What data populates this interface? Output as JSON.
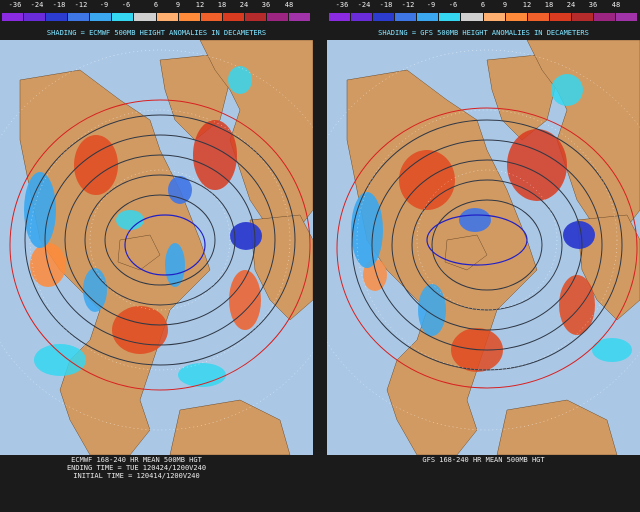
{
  "colorbar": {
    "labels": [
      "-36",
      "-24",
      "-18",
      "-12",
      "-9",
      "-6",
      "6",
      "9",
      "12",
      "18",
      "24",
      "36",
      "48"
    ],
    "colors": [
      "#8a2be2",
      "#6a2bd8",
      "#2c3ccf",
      "#3f76e6",
      "#3aa7ee",
      "#35d6ef",
      "#cfcfcf",
      "#ffb070",
      "#ff8a3a",
      "#f0602a",
      "#d83b20",
      "#b52a2a",
      "#9b2580",
      "#a033a8"
    ]
  },
  "left": {
    "title": "SHADING = ECMWF 500MB HEIGHT ANOMALIES IN DECAMETERS",
    "caption_line1": "ECMWF 168-240 HR MEAN 500MB HGT",
    "caption_line2": "ENDING TIME = TUE 120424/1200V240",
    "caption_line3": "INITIAL TIME = 120414/1200V240"
  },
  "right": {
    "title": "SHADING = GFS 500MB HEIGHT ANOMALIES IN DECAMETERS",
    "caption_line1": "GFS 168-240 HR MEAN 500MB HGT"
  },
  "map_colors": {
    "ocean": "#aac8e6",
    "land": "#d19a62",
    "contour": "#303846",
    "contour_red": "#d82020",
    "contour_blue": "#2020c8"
  }
}
